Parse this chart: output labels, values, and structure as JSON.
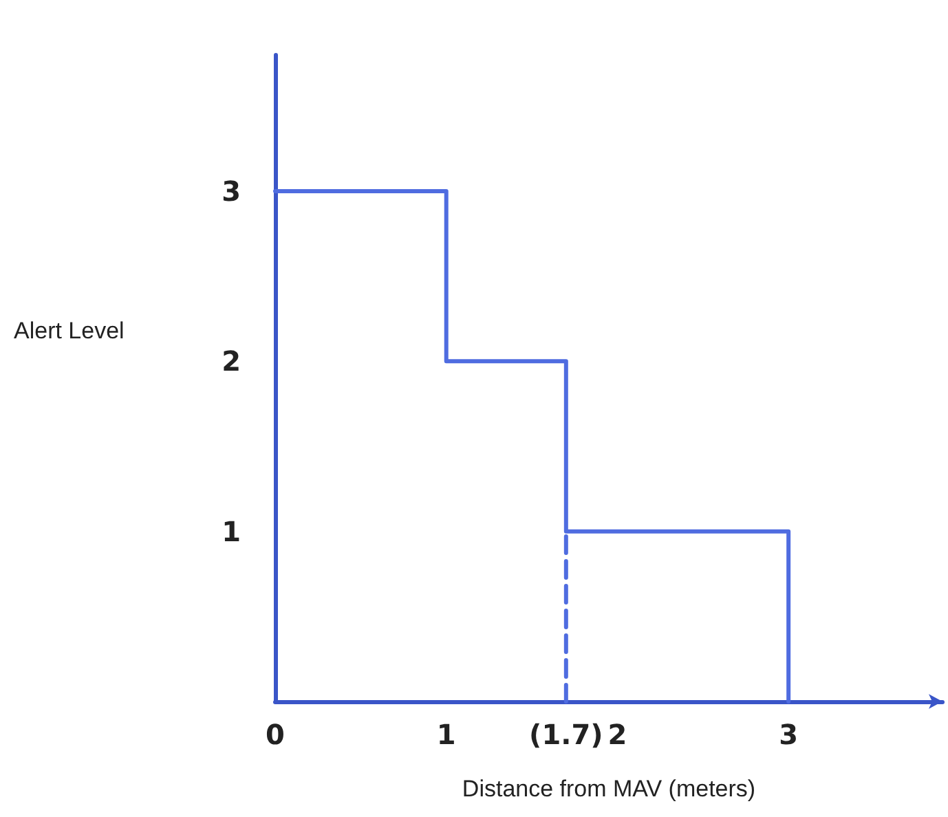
{
  "chart_data": {
    "type": "step",
    "xlabel": "Distance from MAV (meters)",
    "ylabel": "Alert Level",
    "series": [
      {
        "color": "#4f6ce0",
        "x": [
          0,
          1,
          1.7,
          3
        ],
        "values": [
          3,
          2,
          1,
          0
        ],
        "line_style": "solid"
      },
      {
        "type": "line",
        "color": "#4f6ce0",
        "x": [
          1.7,
          1.7
        ],
        "values": [
          0,
          1
        ],
        "line_style": "dashed"
      }
    ],
    "xlim": [
      0,
      3.9
    ],
    "xticks": [
      0,
      1,
      {
        "value": 1.7,
        "label": "(1.7)"
      },
      2,
      3
    ],
    "ylim": [
      0,
      3.8
    ],
    "yticks": [
      1,
      2,
      3
    ],
    "grid": false,
    "marker": "none"
  }
}
